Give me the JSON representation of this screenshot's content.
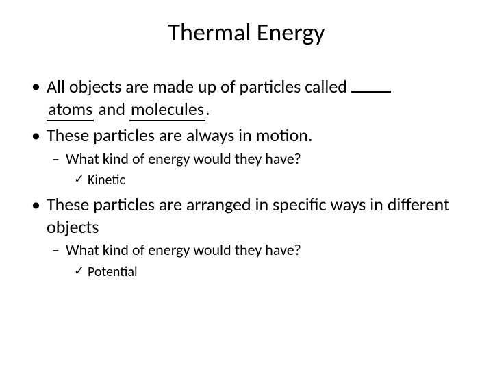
{
  "slide": {
    "title": "Thermal Energy",
    "bullet1_part1": "All objects are made up of particles called ",
    "bullet1_part2": " and ",
    "bullet1_part3": ".",
    "bullet1_fill1": "atoms",
    "bullet1_fill2": "molecules",
    "bullet2": "These particles are always in motion.",
    "sub_question1": "What kind of energy would they have?",
    "answer1": "Kinetic",
    "bullet3": "These particles are arranged in specific ways in different objects",
    "sub_question2": "What kind of energy would they have?",
    "answer2": " Potential"
  },
  "style": {
    "background_color": "#ffffff",
    "text_color": "#000000",
    "title_fontsize": 36,
    "body_fontsize": 26,
    "sub_fontsize": 22,
    "subsub_fontsize": 20,
    "font_family": "Calibri"
  }
}
